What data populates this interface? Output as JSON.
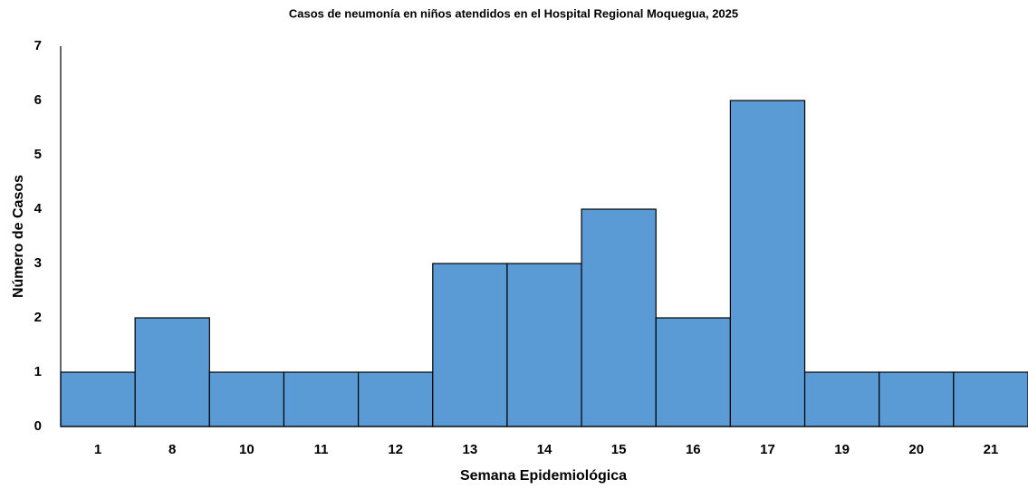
{
  "chart_data": {
    "type": "bar",
    "title": "Casos de neumonía en niños atendidos en el Hospital Regional Moquegua, 2025",
    "x_label": "Semana Epidemiológica",
    "y_label": "Número de Casos",
    "categories": [
      "1",
      "8",
      "10",
      "11",
      "12",
      "13",
      "14",
      "15",
      "16",
      "17",
      "19",
      "20",
      "21"
    ],
    "values": [
      1,
      2,
      1,
      1,
      1,
      3,
      3,
      4,
      2,
      6,
      1,
      1,
      1
    ],
    "color": "#5b9bd5",
    "ylim": [
      0,
      7
    ],
    "yticks": [
      0,
      1,
      2,
      3,
      4,
      5,
      6,
      7
    ],
    "grid": false
  }
}
